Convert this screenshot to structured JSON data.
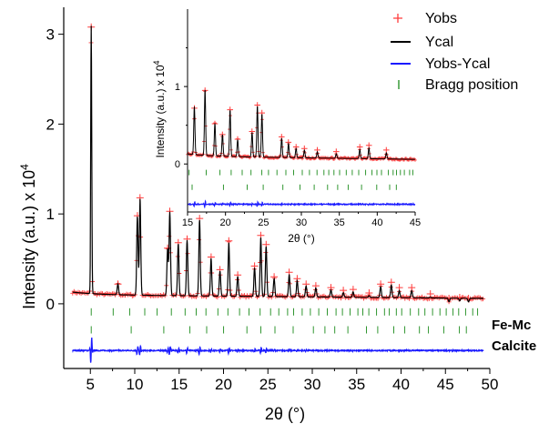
{
  "chart_data": [
    {
      "type": "line",
      "panel": "main",
      "xlabel": "2θ (°)",
      "ylabel": "Intensity (a.u.) x 10",
      "ylabel_exponent": "4",
      "xlim": [
        2,
        50
      ],
      "ylim": [
        -0.72,
        3.3
      ],
      "x_ticks": [
        5,
        10,
        15,
        20,
        25,
        30,
        35,
        40,
        45,
        50
      ],
      "y_ticks": [
        0,
        1,
        2,
        3
      ],
      "background_level": 0.1,
      "peaks": [
        {
          "x": 5.1,
          "y": 3.08
        },
        {
          "x": 8.1,
          "y": 0.22
        },
        {
          "x": 10.3,
          "y": 0.98
        },
        {
          "x": 10.6,
          "y": 1.18
        },
        {
          "x": 13.7,
          "y": 0.62
        },
        {
          "x": 13.95,
          "y": 1.03
        },
        {
          "x": 14.9,
          "y": 0.68
        },
        {
          "x": 15.9,
          "y": 0.72
        },
        {
          "x": 17.3,
          "y": 0.95
        },
        {
          "x": 18.6,
          "y": 0.52
        },
        {
          "x": 19.6,
          "y": 0.38
        },
        {
          "x": 20.6,
          "y": 0.7
        },
        {
          "x": 21.6,
          "y": 0.32
        },
        {
          "x": 23.5,
          "y": 0.42
        },
        {
          "x": 24.2,
          "y": 0.76
        },
        {
          "x": 24.8,
          "y": 0.66
        },
        {
          "x": 25.7,
          "y": 0.3
        },
        {
          "x": 27.4,
          "y": 0.35
        },
        {
          "x": 28.3,
          "y": 0.28
        },
        {
          "x": 29.3,
          "y": 0.22
        },
        {
          "x": 30.4,
          "y": 0.2
        },
        {
          "x": 32.1,
          "y": 0.18
        },
        {
          "x": 33.5,
          "y": 0.15
        },
        {
          "x": 34.6,
          "y": 0.16
        },
        {
          "x": 36.4,
          "y": 0.12
        },
        {
          "x": 37.7,
          "y": 0.22
        },
        {
          "x": 38.9,
          "y": 0.24
        },
        {
          "x": 39.8,
          "y": 0.18
        },
        {
          "x": 41.2,
          "y": 0.18
        },
        {
          "x": 43.3,
          "y": 0.11
        },
        {
          "x": 45.4,
          "y": 0.06
        },
        {
          "x": 46.6,
          "y": 0.07
        },
        {
          "x": 47.6,
          "y": 0.06
        }
      ],
      "bragg_rows": [
        {
          "phase": "Fe-Mc",
          "y": -0.09,
          "x_start": 5.1,
          "x_end": 49.3
        },
        {
          "phase": "Calcite",
          "y": -0.29,
          "x_start": 5.1,
          "x_end": 48.6
        }
      ],
      "difference_baseline": -0.52
    },
    {
      "type": "line",
      "panel": "inset",
      "xlabel": "2θ (°)",
      "ylabel": "Intensity (a.u.) x 10",
      "ylabel_exponent": "4",
      "xlim": [
        15,
        45
      ],
      "ylim": [
        -0.62,
        2.0
      ],
      "x_ticks": [
        15,
        20,
        25,
        30,
        35,
        40,
        45
      ],
      "y_ticks": [
        0,
        1
      ],
      "y_minor_ticks": [
        0.5,
        1.5
      ],
      "background_level": 0.1,
      "peaks": [
        {
          "x": 15.9,
          "y": 0.72
        },
        {
          "x": 17.3,
          "y": 0.95
        },
        {
          "x": 18.6,
          "y": 0.52
        },
        {
          "x": 19.6,
          "y": 0.38
        },
        {
          "x": 20.6,
          "y": 0.7
        },
        {
          "x": 21.6,
          "y": 0.32
        },
        {
          "x": 23.5,
          "y": 0.42
        },
        {
          "x": 24.2,
          "y": 0.76
        },
        {
          "x": 24.8,
          "y": 0.66
        },
        {
          "x": 27.4,
          "y": 0.35
        },
        {
          "x": 28.3,
          "y": 0.28
        },
        {
          "x": 29.3,
          "y": 0.22
        },
        {
          "x": 30.4,
          "y": 0.2
        },
        {
          "x": 32.1,
          "y": 0.18
        },
        {
          "x": 34.6,
          "y": 0.16
        },
        {
          "x": 37.7,
          "y": 0.22
        },
        {
          "x": 38.9,
          "y": 0.24
        },
        {
          "x": 41.2,
          "y": 0.18
        }
      ],
      "bragg_rows": [
        {
          "phase": "Fe-Mc",
          "y": -0.11,
          "x_start": 15.2,
          "x_end": 44.8
        },
        {
          "phase": "Calcite",
          "y": -0.3,
          "x_start": 15.6,
          "x_end": 44.4
        }
      ],
      "difference_baseline": -0.52
    }
  ],
  "legend": {
    "position": "top-right",
    "entries": [
      {
        "label": "Yobs",
        "color": "#ff3b3b",
        "marker": "plus"
      },
      {
        "label": "Ycal",
        "color": "#000000",
        "marker": "line"
      },
      {
        "label": "Yobs-Ycal",
        "color": "#1a1aff",
        "marker": "line"
      },
      {
        "label": "Bragg position",
        "color": "#1a8a1a",
        "marker": "tick"
      }
    ]
  },
  "phase_labels": {
    "fe_mc": "Fe-Mc",
    "calcite": "Calcite"
  },
  "colors": {
    "observed": "#ff3b3b",
    "calculated": "#000000",
    "difference": "#1a1aff",
    "bragg": "#1a8a1a"
  }
}
